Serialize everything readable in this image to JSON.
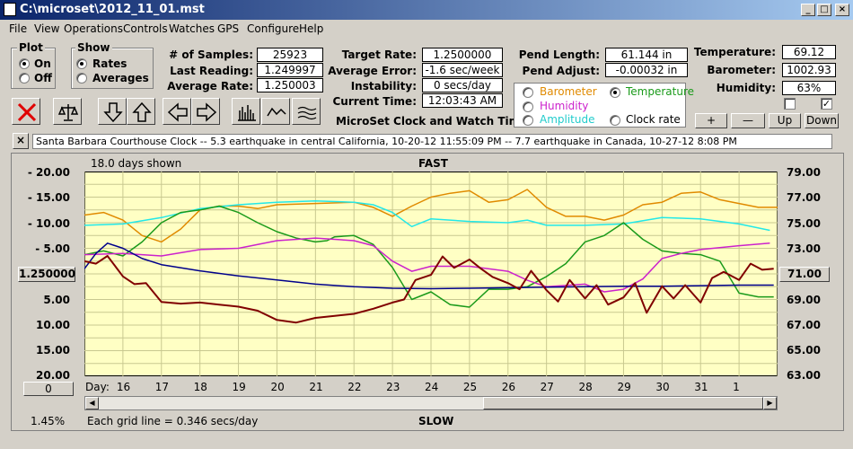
{
  "window": {
    "title": "C:\\microset\\2012_11_01.mst"
  },
  "menu": [
    "File",
    "View",
    "Operations",
    "Controls",
    "Watches",
    "GPS",
    "Configure",
    "Help"
  ],
  "plot_group": {
    "title": "Plot",
    "on": "On",
    "off": "Off",
    "selected": "On"
  },
  "show_group": {
    "title": "Show",
    "rates": "Rates",
    "averages": "Averages",
    "selected": "Rates"
  },
  "stats": {
    "samples_label": "# of Samples:",
    "samples": "25923",
    "last_label": "Last Reading:",
    "last": "1.249997",
    "avg_label": "Average Rate:",
    "avg": "1.250003",
    "target_label": "Target Rate:",
    "target": "1.2500000",
    "avgerr_label": "Average Error:",
    "avgerr": "-1.6 sec/week",
    "instab_label": "Instability:",
    "instab": "0 secs/day",
    "time_label": "Current Time:",
    "time": "12:03:43 AM",
    "pendlen_label": "Pend Length:",
    "pendlen": "61.144 in",
    "pendadj_label": "Pend Adjust:",
    "pendadj": "-0.00032 in",
    "temp_label": "Temperature:",
    "temp": "69.12",
    "baro_label": "Barometer:",
    "baro": "1002.93",
    "hum_label": "Humidity:",
    "hum": "63%"
  },
  "app_caption": "MicroSet Clock and Watch Timer",
  "sensors": {
    "barometer": "Barometer",
    "temperature": "Temperature",
    "humidity": "Humidity",
    "amplitude": "Amplitude",
    "clockrate": "Clock rate",
    "selected": "Temperature",
    "colors": {
      "barometer": "#e08a00",
      "temperature": "#1a9a1a",
      "humidity": "#cc22cc",
      "amplitude": "#22cccc",
      "clockrate": "#000000"
    }
  },
  "sensor_buttons": [
    "+",
    "—",
    "Up",
    "Down"
  ],
  "checkboxes": [
    false,
    true
  ],
  "ticker": {
    "close": "×",
    "text": "Santa Barbara Courthouse Clock  --  5.3 earthquake in central California, 10-20-12 11:55:09 PM  --  7.7 earthquake in Canada, 10-27-12 8:08 PM"
  },
  "chart_header": {
    "days_shown": "18.0 days shown",
    "fast": "FAST",
    "slow": "SLOW",
    "grid_note": "Each grid line = 0.346 secs/day",
    "percent": "1.45%"
  },
  "left_ticks": [
    "-  20.00",
    "-  15.00",
    "-  10.00",
    "-  5.00",
    "5.00",
    "10.00",
    "15.00",
    "20.00"
  ],
  "rate_button": "1.250000",
  "scroll_button": "0",
  "right_ticks": [
    "79.00",
    "77.00",
    "75.00",
    "73.00",
    "71.00",
    "69.00",
    "67.00",
    "65.00",
    "63.00"
  ],
  "right_button": "71.00",
  "day_label": "Day:",
  "chart_data": {
    "type": "line",
    "x_label": "Day",
    "x_ticks": [
      "16",
      "17",
      "18",
      "19",
      "20",
      "21",
      "22",
      "23",
      "24",
      "25",
      "26",
      "27",
      "28",
      "29",
      "30",
      "31",
      "1"
    ],
    "x_range": [
      15.0,
      33.0
    ],
    "y_left_range": [
      -20,
      20
    ],
    "y_right_range": [
      63,
      79
    ],
    "grid": true,
    "series": [
      {
        "key": "barometer",
        "color": "#e08a00",
        "x": [
          15.0,
          15.5,
          16.0,
          16.5,
          17.0,
          17.5,
          18.0,
          18.5,
          19.0,
          19.5,
          20.0,
          21.0,
          22.0,
          22.5,
          23.0,
          23.5,
          24.0,
          24.5,
          25.0,
          25.5,
          26.0,
          26.5,
          27.0,
          27.5,
          28.0,
          28.5,
          29.0,
          29.5,
          30.0,
          30.5,
          31.0,
          31.5,
          32.0,
          32.5,
          33.0
        ],
        "y": [
          75.6,
          75.8,
          75.2,
          74.0,
          73.5,
          74.5,
          76.0,
          76.3,
          76.3,
          76.1,
          76.4,
          76.5,
          76.6,
          76.2,
          75.5,
          76.3,
          77.0,
          77.3,
          77.5,
          76.6,
          76.8,
          77.6,
          76.2,
          75.5,
          75.5,
          75.2,
          75.6,
          76.4,
          76.6,
          77.3,
          77.4,
          76.8,
          76.5,
          76.2,
          76.2
        ]
      },
      {
        "key": "amplitude",
        "color": "#22e8e8",
        "x": [
          15.0,
          16.0,
          17.0,
          18.0,
          19.0,
          20.0,
          21.0,
          22.0,
          22.5,
          23.0,
          23.5,
          24.0,
          25.0,
          26.0,
          26.5,
          27.0,
          28.0,
          29.0,
          30.0,
          31.0,
          32.0,
          32.8
        ],
        "y": [
          74.8,
          74.9,
          75.4,
          76.1,
          76.4,
          76.6,
          76.7,
          76.6,
          76.4,
          75.8,
          74.7,
          75.3,
          75.1,
          75.0,
          75.2,
          74.8,
          74.8,
          74.9,
          75.4,
          75.3,
          74.9,
          74.4
        ]
      },
      {
        "key": "temperature",
        "color": "#1a9a1a",
        "x": [
          15.0,
          15.5,
          16.0,
          16.5,
          17.0,
          17.5,
          18.0,
          18.5,
          19.0,
          19.5,
          20.0,
          20.5,
          21.0,
          21.3,
          21.5,
          22.0,
          22.5,
          23.0,
          23.5,
          24.0,
          24.5,
          25.0,
          25.5,
          26.0,
          26.5,
          27.0,
          27.5,
          28.0,
          28.5,
          29.0,
          29.5,
          30.0,
          30.5,
          31.0,
          31.5,
          32.0,
          32.5,
          32.9
        ],
        "y": [
          72.5,
          72.8,
          72.4,
          73.5,
          75.0,
          75.8,
          76.0,
          76.3,
          75.8,
          75.0,
          74.3,
          73.8,
          73.5,
          73.6,
          73.9,
          74.0,
          73.3,
          71.5,
          69.0,
          69.6,
          68.6,
          68.4,
          69.8,
          69.8,
          70.0,
          70.8,
          71.8,
          73.5,
          74.0,
          75.0,
          73.7,
          72.8,
          72.6,
          72.5,
          72.0,
          69.5,
          69.2,
          69.2
        ]
      },
      {
        "key": "humidity",
        "color": "#cc22cc",
        "x": [
          15.0,
          16.0,
          17.0,
          18.0,
          19.0,
          20.0,
          21.0,
          22.0,
          22.5,
          23.0,
          23.5,
          24.0,
          25.0,
          26.0,
          26.5,
          27.0,
          28.0,
          28.5,
          29.0,
          29.5,
          30.0,
          30.5,
          31.0,
          32.0,
          32.8
        ],
        "y": [
          72.5,
          72.6,
          72.4,
          72.9,
          73.0,
          73.6,
          73.8,
          73.6,
          73.2,
          72.0,
          71.2,
          71.6,
          71.6,
          71.2,
          70.5,
          70.0,
          70.2,
          69.6,
          69.8,
          70.6,
          72.2,
          72.6,
          72.9,
          73.2,
          73.4
        ]
      },
      {
        "key": "avgrate",
        "color": "#00008b",
        "x": [
          15.0,
          15.3,
          15.6,
          16.0,
          16.5,
          17.0,
          18.0,
          19.0,
          20.0,
          21.0,
          22.0,
          23.0,
          24.0,
          25.0,
          26.0,
          27.0,
          28.0,
          29.0,
          30.0,
          31.0,
          32.0,
          32.9
        ],
        "y": [
          1.0,
          4.0,
          6.0,
          5.0,
          3.0,
          1.8,
          0.6,
          -0.4,
          -1.2,
          -2.0,
          -2.5,
          -2.8,
          -2.9,
          -2.8,
          -2.7,
          -2.6,
          -2.5,
          -2.4,
          -2.4,
          -2.3,
          -2.2,
          -2.2
        ]
      },
      {
        "key": "rate",
        "color": "#800000",
        "x": [
          15.0,
          15.3,
          15.6,
          16.0,
          16.3,
          16.6,
          17.0,
          17.5,
          18.0,
          18.5,
          19.0,
          19.5,
          20.0,
          20.5,
          21.0,
          21.5,
          22.0,
          22.5,
          23.0,
          23.3,
          23.6,
          24.0,
          24.3,
          24.6,
          25.0,
          25.3,
          25.6,
          26.0,
          26.3,
          26.6,
          27.0,
          27.3,
          27.6,
          28.0,
          28.3,
          28.6,
          29.0,
          29.3,
          29.6,
          30.0,
          30.3,
          30.6,
          31.0,
          31.3,
          31.6,
          32.0,
          32.3,
          32.6,
          32.9
        ],
        "y": [
          2.5,
          2.0,
          3.5,
          -0.5,
          -2.0,
          -1.8,
          -5.5,
          -5.8,
          -5.6,
          -6.0,
          -6.4,
          -7.2,
          -9.0,
          -9.5,
          -8.6,
          -8.2,
          -7.8,
          -6.8,
          -5.6,
          -5.0,
          -1.2,
          -0.2,
          3.4,
          1.2,
          2.8,
          1.0,
          -0.6,
          -1.8,
          -3.0,
          0.6,
          -3.2,
          -5.4,
          -1.2,
          -4.8,
          -2.2,
          -6.0,
          -4.6,
          -1.8,
          -7.6,
          -2.4,
          -4.8,
          -2.2,
          -5.6,
          -0.8,
          0.4,
          -1.2,
          2.0,
          0.8,
          1.0
        ]
      }
    ]
  }
}
